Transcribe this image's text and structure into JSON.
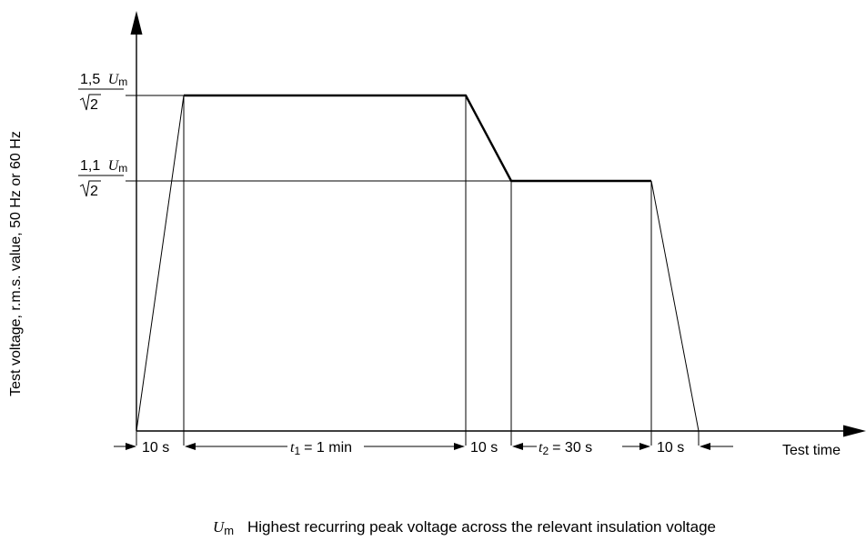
{
  "y_axis_label": "Test voltage, r.m.s. value, 50 Hz or 60 Hz",
  "x_axis_label": "Test time",
  "levels": {
    "upper": {
      "factor": "1,5",
      "symbol": "U",
      "subscript": "m",
      "denominator": "2"
    },
    "lower": {
      "factor": "1,1",
      "symbol": "U",
      "subscript": "m",
      "denominator": "2"
    }
  },
  "intervals": {
    "ramp_up": "10 s",
    "t1_symbol": "t",
    "t1_subscript": "1",
    "t1_value": "= 1 min",
    "step_down": "10 s",
    "t2_symbol": "t",
    "t2_subscript": "2",
    "t2_value": "= 30 s",
    "ramp_down": "10 s"
  },
  "legend": {
    "symbol": "U",
    "subscript": "m",
    "text": "Highest recurring peak voltage across the relevant insulation voltage"
  }
}
